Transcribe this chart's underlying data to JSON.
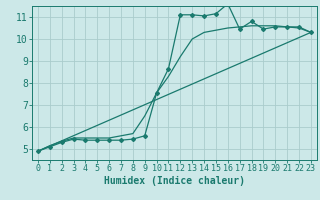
{
  "xlabel": "Humidex (Indice chaleur)",
  "ylabel": "",
  "bg_color": "#cce8e8",
  "grid_color": "#aacccc",
  "line_color": "#1a7a6e",
  "xlim": [
    -0.5,
    23.5
  ],
  "ylim": [
    4.5,
    11.5
  ],
  "xticks": [
    0,
    1,
    2,
    3,
    4,
    5,
    6,
    7,
    8,
    9,
    10,
    11,
    12,
    13,
    14,
    15,
    16,
    17,
    18,
    19,
    20,
    21,
    22,
    23
  ],
  "yticks": [
    5,
    6,
    7,
    8,
    9,
    10,
    11
  ],
  "curve1_x": [
    0,
    1,
    2,
    3,
    4,
    5,
    6,
    7,
    8,
    9,
    10,
    11,
    12,
    13,
    14,
    15,
    16,
    17,
    18,
    19,
    20,
    21,
    22,
    23
  ],
  "curve1_y": [
    4.9,
    5.1,
    5.3,
    5.45,
    5.4,
    5.4,
    5.4,
    5.4,
    5.45,
    5.6,
    7.55,
    8.65,
    11.1,
    11.1,
    11.05,
    11.15,
    11.6,
    10.45,
    10.8,
    10.45,
    10.55,
    10.55,
    10.55,
    10.3
  ],
  "curve2_x": [
    0,
    23
  ],
  "curve2_y": [
    4.9,
    10.3
  ],
  "curve3_x": [
    0,
    1,
    2,
    3,
    4,
    5,
    6,
    7,
    8,
    9,
    10,
    11,
    12,
    13,
    14,
    15,
    16,
    17,
    18,
    19,
    20,
    21,
    22,
    23
  ],
  "curve3_y": [
    4.9,
    5.15,
    5.35,
    5.5,
    5.5,
    5.5,
    5.5,
    5.6,
    5.7,
    6.5,
    7.55,
    8.3,
    9.2,
    10.0,
    10.3,
    10.4,
    10.5,
    10.55,
    10.6,
    10.6,
    10.6,
    10.55,
    10.5,
    10.3
  ],
  "tick_fontsize": 6,
  "label_fontsize": 7
}
